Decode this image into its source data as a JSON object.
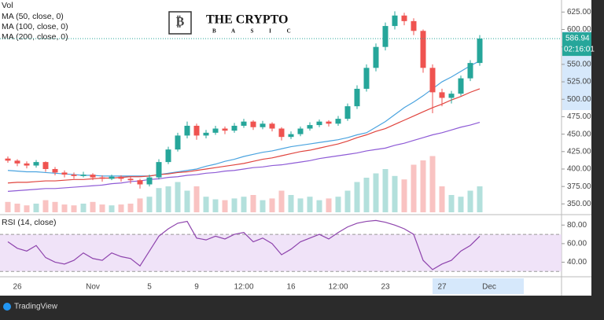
{
  "chart_data": {
    "type": "candlestick",
    "watermark": [
      "THE CRYPTO",
      "B A S I C"
    ],
    "footer": "TradingView",
    "countdown": "02:16:01",
    "up_color": "#26a69a",
    "down_color": "#ef5350",
    "categories": [
      null,
      "26",
      null,
      null,
      null,
      null,
      null,
      null,
      null,
      "Nov",
      null,
      null,
      null,
      null,
      null,
      "5",
      null,
      null,
      null,
      null,
      "9",
      null,
      null,
      null,
      null,
      "12:00",
      null,
      null,
      null,
      null,
      "16",
      null,
      null,
      null,
      null,
      "12:00",
      null,
      null,
      null,
      null,
      "23",
      null,
      null,
      null,
      null,
      null,
      "27",
      null,
      null,
      null,
      null,
      "Dec",
      null,
      null,
      null,
      null,
      null,
      null,
      null
    ],
    "open": [
      415,
      412,
      408,
      405,
      410,
      400,
      395,
      392,
      390,
      392,
      388,
      386,
      389,
      386,
      384,
      378,
      388,
      410,
      428,
      448,
      462,
      448,
      452,
      458,
      455,
      462,
      468,
      460,
      465,
      458,
      446,
      450,
      458,
      463,
      468,
      465,
      472,
      490,
      515,
      545,
      575,
      605,
      620,
      612,
      598,
      545,
      510,
      502,
      508,
      530,
      552,
      null,
      null,
      null,
      null,
      null,
      null,
      null,
      null
    ],
    "high": [
      418,
      414,
      411,
      413,
      411,
      403,
      398,
      395,
      396,
      394,
      391,
      392,
      391,
      389,
      386,
      392,
      414,
      432,
      452,
      468,
      465,
      456,
      462,
      461,
      466,
      472,
      470,
      469,
      467,
      460,
      454,
      461,
      467,
      471,
      470,
      476,
      494,
      520,
      550,
      580,
      610,
      626,
      624,
      616,
      600,
      550,
      515,
      512,
      534,
      556,
      592,
      null,
      null,
      null,
      null,
      null,
      null,
      null,
      null
    ],
    "low": [
      409,
      404,
      401,
      402,
      396,
      391,
      388,
      386,
      388,
      384,
      382,
      384,
      382,
      379,
      372,
      375,
      385,
      407,
      425,
      444,
      442,
      444,
      449,
      450,
      452,
      459,
      456,
      457,
      454,
      441,
      443,
      447,
      455,
      460,
      461,
      462,
      469,
      486,
      511,
      540,
      570,
      600,
      606,
      592,
      538,
      480,
      490,
      494,
      505,
      526,
      548,
      null,
      null,
      null,
      null,
      null,
      null,
      null,
      null
    ],
    "close": [
      412,
      408,
      405,
      410,
      400,
      395,
      392,
      390,
      392,
      388,
      386,
      389,
      386,
      384,
      378,
      388,
      410,
      428,
      448,
      462,
      448,
      452,
      458,
      455,
      462,
      468,
      460,
      465,
      458,
      446,
      450,
      458,
      463,
      468,
      465,
      472,
      490,
      515,
      545,
      575,
      605,
      620,
      612,
      598,
      545,
      510,
      502,
      508,
      530,
      552,
      586.94,
      null,
      null,
      null,
      null,
      null,
      null,
      null,
      null
    ],
    "ylim": [
      338,
      631
    ],
    "yticks": [
      {
        "value": 625,
        "label": "625.00"
      },
      {
        "value": 600,
        "label": "600.00"
      },
      {
        "value": 575,
        "label": "575.00"
      },
      {
        "value": 550,
        "label": "550.00"
      },
      {
        "value": 525,
        "label": "525.00"
      },
      {
        "value": 500,
        "label": "500.00"
      },
      {
        "value": 475,
        "label": "475.00"
      },
      {
        "value": 450,
        "label": "450.00"
      },
      {
        "value": 425,
        "label": "425.00"
      },
      {
        "value": 400,
        "label": "400.00"
      },
      {
        "value": 375,
        "label": "375.00"
      },
      {
        "value": 350,
        "label": "350.00"
      }
    ],
    "series": [
      {
        "name": "MA (50, close, 0)",
        "color": "#4aa3df",
        "values": [
          398,
          397,
          396,
          396,
          395,
          394,
          393,
          392,
          391,
          391,
          390,
          390,
          390,
          390,
          390,
          390,
          392,
          394,
          396,
          398,
          400,
          404,
          407,
          411,
          414,
          418,
          421,
          424,
          426,
          429,
          432,
          434,
          436,
          438,
          440,
          442,
          445,
          449,
          452,
          460,
          468,
          478,
          488,
          496,
          505,
          515,
          525,
          532,
          540,
          548,
          555,
          null,
          null,
          null,
          null,
          null,
          null,
          null,
          null
        ]
      },
      {
        "name": "MA (100, close, 0)",
        "color": "#e0443e",
        "values": [
          380,
          381,
          381,
          382,
          383,
          383,
          384,
          385,
          385,
          386,
          387,
          387,
          388,
          389,
          389,
          390,
          392,
          393,
          395,
          396,
          398,
          400,
          402,
          404,
          406,
          408,
          411,
          414,
          416,
          419,
          422,
          425,
          427,
          430,
          433,
          436,
          440,
          445,
          449,
          454,
          458,
          464,
          470,
          476,
          482,
          488,
          493,
          499,
          504,
          510,
          515,
          null,
          null,
          null,
          null,
          null,
          null,
          null,
          null
        ]
      },
      {
        "name": "MA (200, close, 0)",
        "color": "#8e5bd6",
        "values": [
          368,
          369,
          370,
          371,
          372,
          372,
          373,
          374,
          375,
          376,
          377,
          379,
          380,
          382,
          383,
          385,
          386,
          388,
          389,
          391,
          392,
          394,
          395,
          397,
          398,
          400,
          402,
          403,
          405,
          406,
          408,
          410,
          412,
          415,
          417,
          419,
          421,
          423,
          426,
          428,
          430,
          434,
          437,
          441,
          445,
          449,
          452,
          456,
          460,
          463,
          467,
          null,
          null,
          null,
          null,
          null,
          null,
          null,
          null
        ]
      }
    ],
    "volume": {
      "name": "Vol",
      "ylim": [
        0,
        100
      ],
      "values": [
        12,
        10,
        8,
        10,
        14,
        12,
        9,
        8,
        10,
        12,
        9,
        8,
        9,
        10,
        16,
        18,
        28,
        30,
        35,
        25,
        30,
        18,
        15,
        14,
        16,
        18,
        20,
        14,
        16,
        25,
        20,
        16,
        18,
        14,
        16,
        18,
        25,
        35,
        40,
        45,
        50,
        42,
        38,
        55,
        60,
        65,
        30,
        20,
        18,
        25,
        30,
        null,
        null,
        null,
        null,
        null,
        null,
        null,
        null
      ]
    },
    "rsi": {
      "name": "RSI (14, close)",
      "color": "#8e44ad",
      "ylim": [
        26,
        87
      ],
      "bands": [
        30,
        70
      ],
      "yticks": [
        {
          "value": 80,
          "label": "80.00"
        },
        {
          "value": 60,
          "label": "60.00"
        },
        {
          "value": 40,
          "label": "40.00"
        }
      ],
      "values": [
        62,
        55,
        52,
        58,
        45,
        40,
        38,
        42,
        50,
        44,
        42,
        50,
        46,
        44,
        36,
        52,
        68,
        76,
        82,
        84,
        66,
        64,
        68,
        65,
        70,
        72,
        62,
        66,
        60,
        48,
        54,
        62,
        66,
        70,
        65,
        72,
        78,
        82,
        84,
        85,
        83,
        80,
        76,
        70,
        42,
        32,
        38,
        42,
        52,
        58,
        68,
        null,
        null,
        null,
        null,
        null,
        null,
        null,
        null
      ]
    }
  }
}
